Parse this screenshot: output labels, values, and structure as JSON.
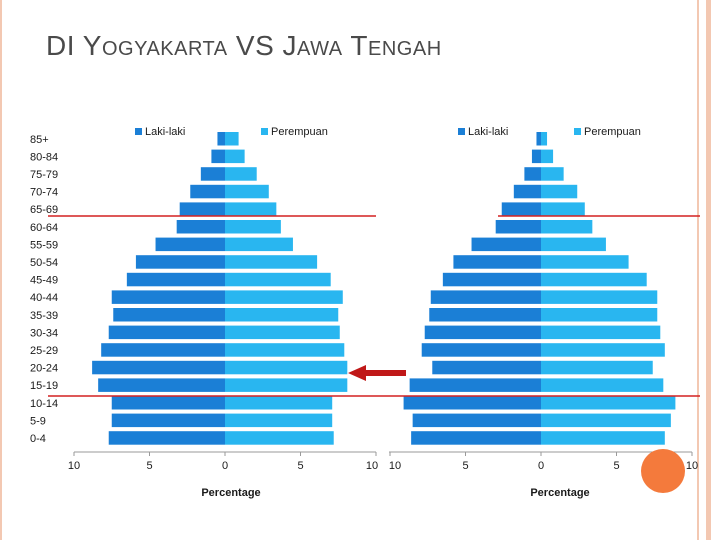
{
  "slide": {
    "title_parts": [
      "DI ",
      "Y",
      "OGYAKARTA",
      " VS ",
      "J",
      "AWA",
      " T",
      "ENGAH"
    ],
    "title_caps": [
      false,
      false,
      true,
      false,
      false,
      true,
      false,
      true
    ]
  },
  "colors": {
    "male": "#1b7fd6",
    "female": "#29b6f0",
    "reference_line": "#d42020",
    "arrow": "#c01818",
    "circle": "#f47a3c",
    "edge_decoration": "#f3c8b2"
  },
  "chart_data": [
    {
      "type": "bar",
      "orientation": "horizontal",
      "subtype": "population-pyramid",
      "region": "DI Yogyakarta",
      "categories": [
        "0-4",
        "5-9",
        "10-14",
        "15-19",
        "20-24",
        "25-29",
        "30-34",
        "35-39",
        "40-44",
        "45-49",
        "50-54",
        "55-59",
        "60-64",
        "65-69",
        "70-74",
        "75-79",
        "80-84",
        "85+"
      ],
      "series": [
        {
          "name": "Laki-laki",
          "values": [
            7.7,
            7.5,
            7.5,
            8.4,
            8.8,
            8.2,
            7.7,
            7.4,
            7.5,
            6.5,
            5.9,
            4.6,
            3.2,
            3.0,
            2.3,
            1.6,
            0.9,
            0.5
          ]
        },
        {
          "name": "Perempuan",
          "values": [
            7.2,
            7.1,
            7.1,
            8.1,
            8.1,
            7.9,
            7.6,
            7.5,
            7.8,
            7.0,
            6.1,
            4.5,
            3.7,
            3.4,
            2.9,
            2.1,
            1.3,
            0.9
          ]
        }
      ],
      "xlabel": "Percentage",
      "xlim": [
        -10,
        10
      ],
      "xticks": [
        10,
        5,
        0,
        5,
        10
      ],
      "legend": "top"
    },
    {
      "type": "bar",
      "orientation": "horizontal",
      "subtype": "population-pyramid",
      "region": "Jawa Tengah",
      "categories": [
        "0-4",
        "5-9",
        "10-14",
        "15-19",
        "20-24",
        "25-29",
        "30-34",
        "35-39",
        "40-44",
        "45-49",
        "50-54",
        "55-59",
        "60-64",
        "65-69",
        "70-74",
        "75-79",
        "80-84",
        "85+"
      ],
      "series": [
        {
          "name": "Laki-laki",
          "values": [
            8.6,
            8.5,
            9.1,
            8.7,
            7.2,
            7.9,
            7.7,
            7.4,
            7.3,
            6.5,
            5.8,
            4.6,
            3.0,
            2.6,
            1.8,
            1.1,
            0.6,
            0.3
          ]
        },
        {
          "name": "Perempuan",
          "values": [
            8.2,
            8.6,
            8.9,
            8.1,
            7.4,
            8.2,
            7.9,
            7.7,
            7.7,
            7.0,
            5.8,
            4.3,
            3.4,
            2.9,
            2.4,
            1.5,
            0.8,
            0.4
          ]
        }
      ],
      "xlabel": "Percentage",
      "xlim": [
        -10,
        10
      ],
      "xticks": [
        10,
        5,
        0,
        5,
        10
      ],
      "legend": "top"
    }
  ]
}
